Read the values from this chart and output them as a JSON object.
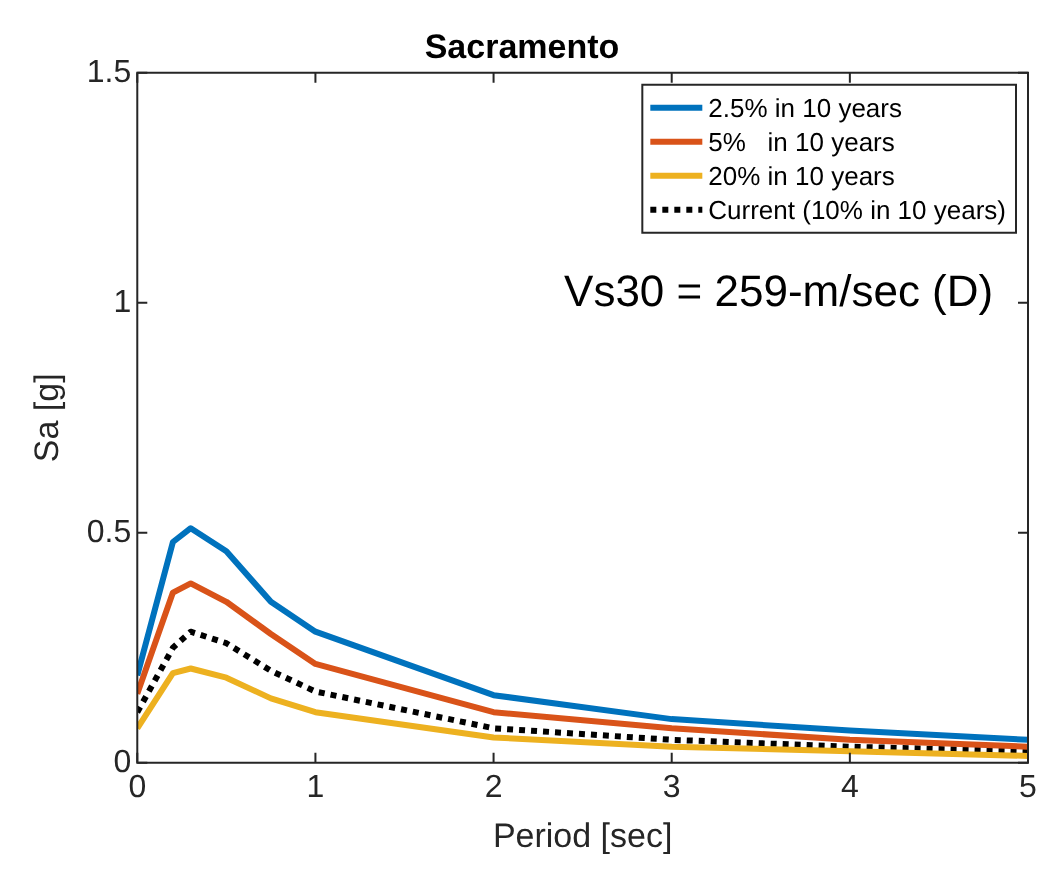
{
  "chart_data": {
    "type": "line",
    "title": "Sacramento",
    "xlabel": "Period [sec]",
    "ylabel": "Sa [g]",
    "annotations": [
      "Vs30 = 259-m/sec (D)"
    ],
    "xlim": [
      0,
      5
    ],
    "xticks": [
      0,
      1,
      2,
      3,
      4,
      5
    ],
    "ylim": [
      0,
      1.5
    ],
    "yticks": [
      0,
      0.5,
      1,
      1.5
    ],
    "grid": false,
    "legend": "top right",
    "marker": "none",
    "series": [
      {
        "name": "2.5% in 10 years",
        "color": "#0072bd",
        "line_style": "solid",
        "x": [
          0,
          0.2,
          0.3,
          0.5,
          0.75,
          1,
          2,
          3,
          4,
          5
        ],
        "values": [
          0.19,
          0.48,
          0.51,
          0.46,
          0.35,
          0.285,
          0.147,
          0.095,
          0.07,
          0.05
        ]
      },
      {
        "name": "5%   in 10 years",
        "color": "#d95319",
        "line_style": "solid",
        "x": [
          0,
          0.2,
          0.3,
          0.5,
          0.75,
          1,
          2,
          3,
          4,
          5
        ],
        "values": [
          0.15,
          0.37,
          0.39,
          0.35,
          0.28,
          0.215,
          0.11,
          0.075,
          0.05,
          0.035
        ]
      },
      {
        "name": "20% in 10 years",
        "color": "#edb120",
        "line_style": "solid",
        "x": [
          0,
          0.2,
          0.3,
          0.5,
          0.75,
          1,
          2,
          3,
          4,
          5
        ],
        "values": [
          0.075,
          0.195,
          0.205,
          0.185,
          0.14,
          0.11,
          0.055,
          0.035,
          0.025,
          0.015
        ]
      },
      {
        "name": "Current (10% in 10 years)",
        "color": "#000000",
        "line_style": "dotted",
        "x": [
          0,
          0.2,
          0.3,
          0.5,
          0.75,
          1,
          2,
          3,
          4,
          5
        ],
        "values": [
          0.11,
          0.25,
          0.285,
          0.26,
          0.2,
          0.155,
          0.075,
          0.05,
          0.035,
          0.025
        ]
      }
    ]
  }
}
